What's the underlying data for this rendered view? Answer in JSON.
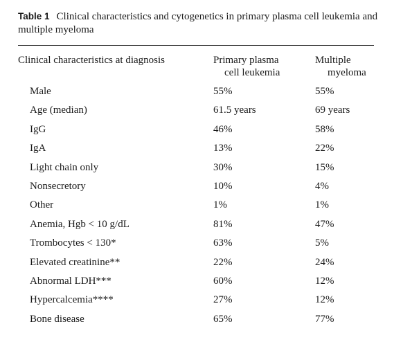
{
  "caption": {
    "label": "Table 1",
    "text": "Clinical characteristics and cytogenetics in primary plasma cell leukemia and multiple myeloma"
  },
  "headers": {
    "characteristic": "Clinical characteristics at diagnosis",
    "ppcl_line1": "Primary plasma",
    "ppcl_line2": "cell leukemia",
    "mm_line1": "Multiple",
    "mm_line2": "myeloma"
  },
  "rows": [
    {
      "name": "Male",
      "ppcl": "55%",
      "mm": "55%"
    },
    {
      "name": "Age (median)",
      "ppcl": "61.5 years",
      "mm": "69 years"
    },
    {
      "name": "IgG",
      "ppcl": "46%",
      "mm": "58%"
    },
    {
      "name": "IgA",
      "ppcl": "13%",
      "mm": "22%"
    },
    {
      "name": "Light chain only",
      "ppcl": "30%",
      "mm": "15%"
    },
    {
      "name": "Nonsecretory",
      "ppcl": "10%",
      "mm": "4%"
    },
    {
      "name": "Other",
      "ppcl": "1%",
      "mm": "1%"
    },
    {
      "name": "Anemia, Hgb < 10 g/dL",
      "ppcl": "81%",
      "mm": "47%"
    },
    {
      "name": "Trombocytes < 130*",
      "ppcl": "63%",
      "mm": "5%"
    },
    {
      "name": "Elevated creatinine**",
      "ppcl": "22%",
      "mm": "24%"
    },
    {
      "name": "Abnormal LDH***",
      "ppcl": "60%",
      "mm": "12%"
    },
    {
      "name": "Hypercalcemia****",
      "ppcl": "27%",
      "mm": "12%"
    },
    {
      "name": "Bone disease",
      "ppcl": "65%",
      "mm": "77%"
    }
  ]
}
